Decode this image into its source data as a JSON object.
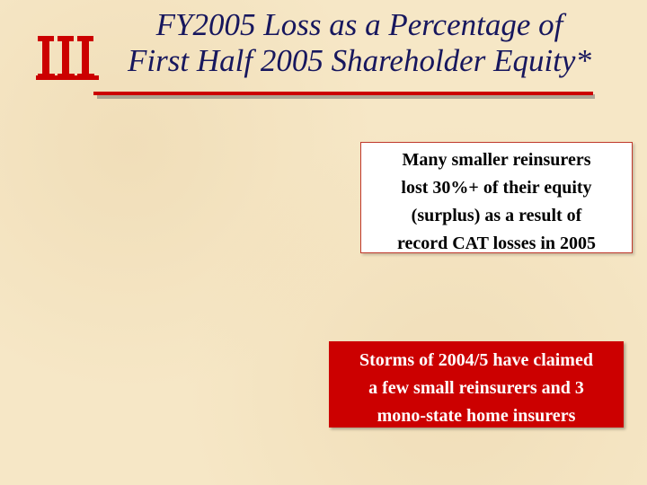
{
  "header": {
    "title_lines": [
      "FY2005 Loss as a Percentage of",
      "First Half 2005 Shareholder Equity*"
    ]
  },
  "callouts": [
    {
      "lines": [
        "Many smaller reinsurers",
        "lost 30%+ of their equity",
        "(surplus) as a result of",
        "record CAT losses in 2005"
      ]
    },
    {
      "lines": [
        "Storms of 2004/5 have claimed",
        "a few small reinsurers and 3",
        "mono-state home insurers"
      ]
    }
  ]
}
